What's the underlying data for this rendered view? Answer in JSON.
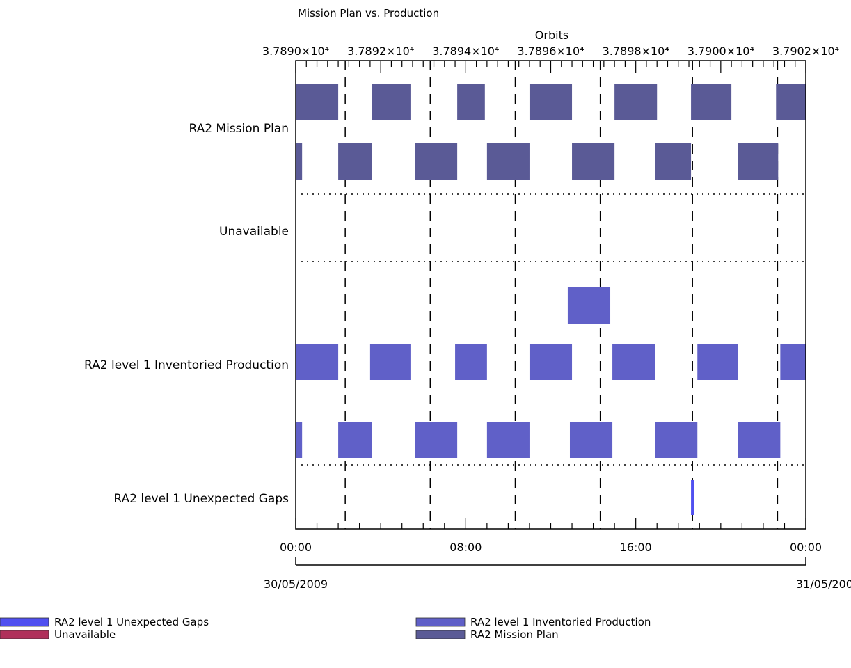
{
  "chart_data": {
    "type": "timeline",
    "title": "Mission Plan vs. Production",
    "top_axis": {
      "label": "Orbits",
      "ticks": [
        "3.7890×10⁴",
        "3.7892×10⁴",
        "3.7894×10⁴",
        "3.7896×10⁴",
        "3.7898×10⁴",
        "3.7900×10⁴",
        "3.7902×10⁴"
      ],
      "tick_hours": [
        0,
        4,
        8,
        12,
        16,
        20,
        24
      ]
    },
    "bottom_axis": {
      "ticks": [
        "00:00",
        "08:00",
        "16:00",
        "00:00"
      ],
      "tick_hours": [
        0,
        8,
        16,
        24
      ],
      "dates": [
        "30/05/2009",
        "31/05/2009"
      ],
      "xlim_hours": [
        0,
        24
      ]
    },
    "grid": {
      "vertical_dashed_hours": [
        2.33,
        6.33,
        10.33,
        14.33,
        18.67,
        22.67
      ],
      "horizontal_dotted": true
    },
    "rows": [
      {
        "label": "RA2 Mission Plan",
        "color": "#5a5a96",
        "tracks": [
          [
            [
              0,
              2.0
            ],
            [
              3.6,
              5.4
            ],
            [
              7.6,
              8.9
            ],
            [
              11.0,
              13.0
            ],
            [
              15.0,
              17.0
            ],
            [
              18.6,
              20.5
            ],
            [
              22.6,
              24.6
            ],
            [
              26.2,
              28.3
            ]
          ],
          [
            [
              -0.8,
              0.3
            ],
            [
              2.0,
              3.6
            ],
            [
              5.6,
              7.6
            ],
            [
              9.0,
              11.0
            ],
            [
              13.0,
              15.0
            ],
            [
              16.9,
              18.6
            ],
            [
              20.8,
              22.7
            ],
            [
              24.7,
              26.2
            ],
            [
              28.3,
              29.0
            ]
          ]
        ]
      },
      {
        "label": "Unavailable",
        "color": "#b0305a",
        "tracks": [
          [],
          []
        ]
      },
      {
        "label": "RA2 level 1 Inventoried Production",
        "color": "#6060c8",
        "tracks": [
          [
            [
              12.8,
              14.8
            ]
          ],
          [
            [
              0,
              2.0
            ],
            [
              3.5,
              5.4
            ],
            [
              7.5,
              9.0
            ],
            [
              11.0,
              13.0
            ],
            [
              14.9,
              16.9
            ],
            [
              18.9,
              20.8
            ],
            [
              22.8,
              24.7
            ],
            [
              26.2,
              28.3
            ]
          ],
          [
            [
              -0.8,
              0.3
            ],
            [
              2.0,
              3.6
            ],
            [
              5.6,
              7.6
            ],
            [
              9.0,
              11.0
            ],
            [
              12.9,
              14.9
            ],
            [
              16.9,
              18.9
            ],
            [
              20.8,
              22.8
            ],
            [
              24.7,
              26.2
            ],
            [
              28.3,
              29.0
            ]
          ]
        ]
      },
      {
        "label": "RA2 level 1 Unexpected Gaps",
        "color": "#5050f0",
        "tracks": [
          [
            [
              18.6,
              18.8
            ]
          ]
        ]
      }
    ],
    "legend": [
      {
        "label": "RA2 level 1 Unexpected Gaps",
        "color": "#5050f0"
      },
      {
        "label": "Unavailable",
        "color": "#b0305a"
      },
      {
        "label": "RA2 level 1 Inventoried Production",
        "color": "#6060c8"
      },
      {
        "label": "RA2 Mission Plan",
        "color": "#5a5a96"
      }
    ]
  }
}
